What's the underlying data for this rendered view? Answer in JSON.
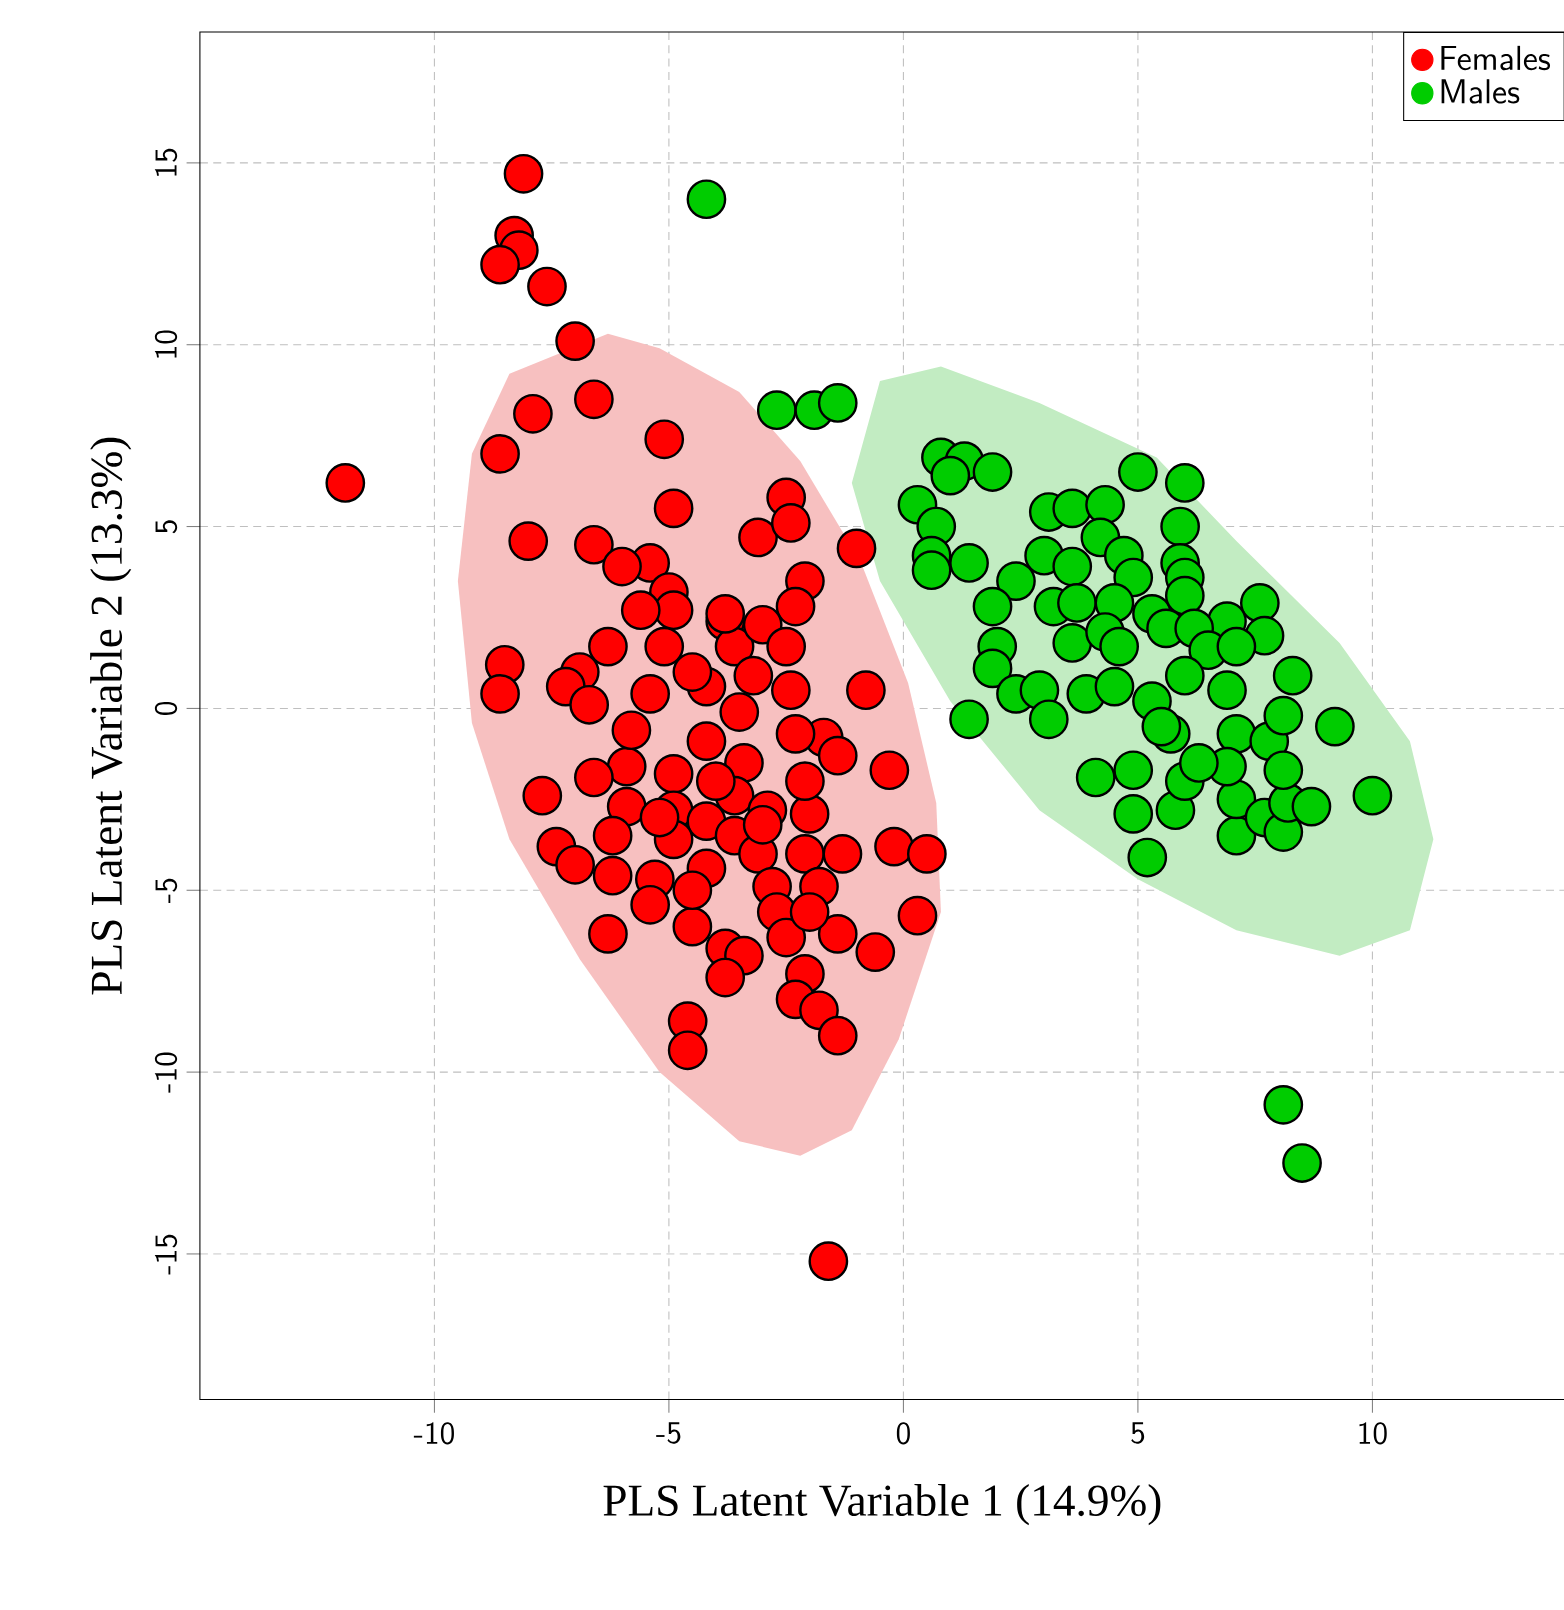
{
  "chart_data": {
    "type": "scatter",
    "xlabel": "PLS Latent Variable 1 (14.9%)",
    "ylabel": "PLS Latent Variable 2 (13.3%)",
    "xlim": [
      -15,
      14.1
    ],
    "ylim": [
      -19,
      18.6
    ],
    "xticks": [
      -10,
      -5,
      0,
      5,
      10
    ],
    "yticks": [
      -15,
      -10,
      -5,
      0,
      5,
      10,
      15
    ],
    "grid": true,
    "legend": "top right",
    "series": [
      {
        "type": "area",
        "marker": "none",
        "color": "#f7c0c0",
        "x": [
          -6.3,
          -5.2,
          -3.5,
          -2.2,
          -0.9,
          0.1,
          0.7,
          0.8,
          -0.1,
          -1.1,
          -2.2,
          -3.5,
          -5.2,
          -6.9,
          -8.4,
          -9.2,
          -9.5,
          -9.2,
          -8.4
        ],
        "values": [
          10.3,
          9.9,
          8.7,
          6.8,
          4.0,
          0.7,
          -2.6,
          -5.6,
          -9.1,
          -11.6,
          -12.3,
          -11.9,
          -10.0,
          -6.9,
          -3.6,
          -0.4,
          3.5,
          7.0,
          9.2
        ]
      },
      {
        "type": "area",
        "marker": "none",
        "color": "#c2ecc2",
        "x": [
          -0.5,
          0.8,
          2.9,
          5.4,
          7.1,
          9.3,
          10.8,
          11.3,
          10.8,
          9.3,
          7.1,
          5.0,
          2.9,
          1.0,
          -0.5,
          -1.1
        ],
        "values": [
          9.0,
          9.4,
          8.4,
          6.9,
          4.6,
          1.8,
          -0.9,
          -3.6,
          -6.1,
          -6.8,
          -6.1,
          -4.7,
          -2.8,
          0.2,
          3.5,
          6.2
        ]
      },
      {
        "name": "Females",
        "marker": "circle",
        "color": "#ff0000",
        "x": [
          -11.9,
          -8.1,
          -8.3,
          -8.2,
          -8.6,
          -7.6,
          -7.0,
          -6.6,
          -7.9,
          -8.6,
          -5.1,
          -4.9,
          -8.0,
          -6.6,
          -3.1,
          -2.5,
          -2.4,
          -1.0,
          -5.4,
          -6.0,
          -2.1,
          -2.3,
          -5.0,
          -4.9,
          -8.5,
          -8.6,
          -3.8,
          -6.9,
          -0.8,
          -6.3,
          -5.1,
          -3.6,
          -3.0,
          -2.5,
          -3.8,
          -5.6,
          -7.2,
          -6.7,
          -5.4,
          -4.2,
          -3.5,
          -2.4,
          -1.7,
          -1.4,
          -2.3,
          -4.2,
          -5.9,
          -4.9,
          -3.4,
          -6.6,
          -7.7,
          -5.9,
          -4.9,
          -3.6,
          -2.9,
          -2.0,
          -2.1,
          -0.3,
          -4.2,
          -6.2,
          -7.4,
          -7.0,
          -4.9,
          -3.6,
          -3.1,
          -2.1,
          -1.3,
          -0.2,
          0.5,
          -6.2,
          -5.3,
          -4.2,
          -2.8,
          -1.8,
          -5.4,
          0.3,
          -4.5,
          -2.7,
          -1.4,
          -6.3,
          -3.8,
          -2.5,
          -0.6,
          -3.4,
          -3.8,
          -2.1,
          -2.3,
          -1.8,
          -1.4,
          -4.6,
          -4.6,
          -1.6,
          -4.5,
          -3.2,
          -5.8,
          -4.0,
          -3.0,
          -5.2,
          -4.5,
          -2.0
        ],
        "values": [
          6.2,
          14.7,
          13.0,
          12.6,
          12.2,
          11.6,
          10.1,
          8.5,
          8.1,
          7.0,
          7.4,
          5.5,
          4.6,
          4.5,
          4.7,
          5.8,
          5.1,
          4.4,
          4.0,
          3.9,
          3.5,
          2.8,
          3.2,
          2.7,
          1.2,
          0.4,
          2.4,
          1.0,
          0.5,
          1.7,
          1.7,
          1.7,
          2.3,
          1.7,
          2.6,
          2.7,
          0.6,
          0.1,
          0.4,
          0.6,
          -0.1,
          0.5,
          -0.8,
          -1.3,
          -0.7,
          -0.9,
          -1.6,
          -1.8,
          -1.5,
          -1.9,
          -2.4,
          -2.7,
          -2.8,
          -2.4,
          -2.8,
          -2.9,
          -2.0,
          -1.7,
          -3.1,
          -3.5,
          -3.8,
          -4.3,
          -3.6,
          -3.5,
          -4.0,
          -4.0,
          -4.0,
          -3.8,
          -4.0,
          -4.6,
          -4.7,
          -4.4,
          -4.9,
          -4.9,
          -5.4,
          -5.7,
          -6.0,
          -5.6,
          -6.2,
          -6.2,
          -6.6,
          -6.3,
          -6.7,
          -6.8,
          -7.4,
          -7.3,
          -8.0,
          -8.3,
          -9.0,
          -8.6,
          -9.4,
          -15.2,
          1.0,
          0.9,
          -0.6,
          -2.0,
          -3.2,
          -3.0,
          -5.0,
          -5.6
        ]
      },
      {
        "name": "Males",
        "marker": "circle",
        "color": "#00cc00",
        "x": [
          -4.2,
          -2.7,
          -1.9,
          -1.4,
          0.8,
          1.3,
          1.9,
          1.0,
          0.3,
          0.7,
          0.6,
          0.6,
          1.4,
          5.0,
          6.0,
          5.9,
          3.1,
          3.6,
          4.3,
          4.2,
          3.0,
          3.6,
          4.7,
          4.9,
          5.9,
          6.0,
          2.4,
          1.9,
          3.2,
          3.7,
          4.5,
          5.3,
          6.0,
          7.6,
          6.9,
          7.7,
          3.6,
          4.3,
          4.6,
          5.6,
          6.2,
          6.5,
          7.1,
          2.0,
          1.9,
          2.4,
          2.9,
          3.1,
          1.4,
          3.9,
          4.5,
          5.3,
          6.0,
          6.9,
          8.3,
          5.7,
          7.1,
          7.8,
          8.1,
          9.2,
          4.1,
          4.9,
          4.9,
          5.2,
          5.8,
          6.0,
          7.1,
          7.1,
          7.7,
          8.1,
          8.2,
          8.7,
          8.1,
          6.9,
          10.0,
          5.5,
          6.3,
          8.1,
          8.5
        ],
        "values": [
          14.0,
          8.2,
          8.2,
          8.4,
          6.9,
          6.8,
          6.5,
          6.4,
          5.6,
          5.0,
          4.2,
          3.8,
          4.0,
          6.5,
          6.2,
          5.0,
          5.4,
          5.5,
          5.6,
          4.7,
          4.2,
          3.9,
          4.2,
          3.6,
          4.0,
          3.6,
          3.5,
          2.8,
          2.8,
          2.9,
          2.9,
          2.6,
          3.1,
          2.9,
          2.4,
          2.0,
          1.8,
          2.1,
          1.7,
          2.2,
          2.2,
          1.6,
          1.7,
          1.7,
          1.1,
          0.4,
          0.5,
          -0.3,
          -0.3,
          0.4,
          0.6,
          0.2,
          0.9,
          0.5,
          0.9,
          -0.7,
          -0.7,
          -0.9,
          -0.2,
          -0.5,
          -1.9,
          -1.7,
          -2.9,
          -4.1,
          -2.8,
          -2.0,
          -3.5,
          -2.5,
          -3.0,
          -3.4,
          -2.6,
          -2.7,
          -1.7,
          -1.6,
          -2.4,
          -0.5,
          -1.5,
          -10.9,
          -12.5
        ]
      }
    ]
  }
}
